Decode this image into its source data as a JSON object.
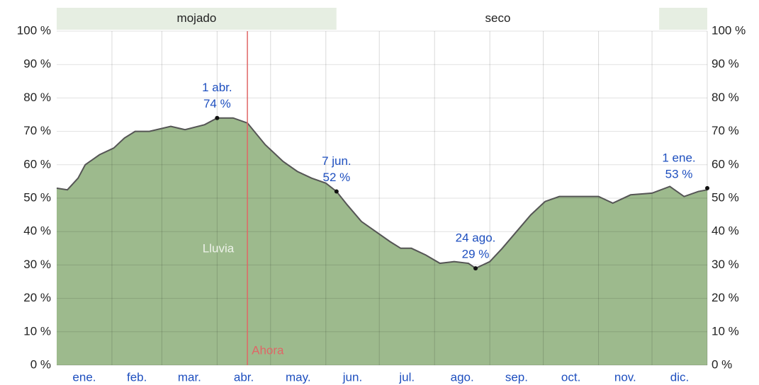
{
  "chart_data": {
    "type": "area",
    "series_label": "Lluvia",
    "x": [
      0,
      6,
      12,
      16,
      24,
      32,
      38,
      44,
      52,
      64,
      72,
      83,
      90,
      99,
      107,
      117,
      127,
      135,
      143,
      151,
      157,
      163,
      171,
      179,
      187,
      193,
      199,
      207,
      215,
      223,
      231,
      235,
      243,
      250,
      258,
      266,
      274,
      282,
      294,
      304,
      312,
      322,
      334,
      344,
      352,
      360,
      365
    ],
    "values": [
      53,
      52.5,
      56,
      60,
      63,
      65,
      68,
      70,
      70,
      71.5,
      70.5,
      72,
      74,
      74,
      72.5,
      66,
      61,
      58,
      56,
      54.5,
      52,
      48,
      43,
      40,
      37,
      35,
      35,
      33,
      30.5,
      31,
      30.5,
      29,
      31,
      35,
      40,
      45,
      49,
      50.5,
      50.5,
      50.5,
      48.5,
      51,
      51.5,
      53.5,
      50.5,
      52,
      52.5
    ],
    "color": "#9dba8d",
    "line_color": "#555555",
    "xlim": [
      0,
      365
    ],
    "xticks": [
      {
        "value": 15.5,
        "label": "ene."
      },
      {
        "value": 45,
        "label": "feb."
      },
      {
        "value": 74.5,
        "label": "mar."
      },
      {
        "value": 105,
        "label": "abr."
      },
      {
        "value": 135.5,
        "label": "may."
      },
      {
        "value": 166,
        "label": "jun."
      },
      {
        "value": 196.5,
        "label": "jul."
      },
      {
        "value": 227.5,
        "label": "ago."
      },
      {
        "value": 258,
        "label": "sep."
      },
      {
        "value": 288.5,
        "label": "oct."
      },
      {
        "value": 319,
        "label": "nov."
      },
      {
        "value": 349.5,
        "label": "dic."
      }
    ],
    "xgrid": [
      31,
      59,
      90,
      120,
      151,
      181,
      212,
      243,
      273,
      304,
      334,
      365
    ],
    "ylim": [
      0,
      100
    ],
    "yticks": [
      {
        "value": 0,
        "label": "0 %"
      },
      {
        "value": 10,
        "label": "10 %"
      },
      {
        "value": 20,
        "label": "20 %"
      },
      {
        "value": 30,
        "label": "30 %"
      },
      {
        "value": 40,
        "label": "40 %"
      },
      {
        "value": 50,
        "label": "50 %"
      },
      {
        "value": 60,
        "label": "60 %"
      },
      {
        "value": 70,
        "label": "70 %"
      },
      {
        "value": 80,
        "label": "80 %"
      },
      {
        "value": 90,
        "label": "90 %"
      },
      {
        "value": 100,
        "label": "100 %"
      }
    ],
    "grid": true,
    "seasons": [
      {
        "name": "mojado",
        "color": "#e6eee2",
        "ranges": [
          [
            0,
            157
          ],
          [
            338,
            365
          ]
        ]
      },
      {
        "name": "seco",
        "color": "#ffffff",
        "ranges": [
          [
            157,
            338
          ]
        ]
      }
    ],
    "now": {
      "x": 107,
      "label": "Ahora",
      "color": "#e06666"
    },
    "annotations": [
      {
        "x": 90,
        "value": 74,
        "date": "1 abr.",
        "label": "74 %"
      },
      {
        "x": 157,
        "value": 52,
        "date": "7 jun.",
        "label": "52 %"
      },
      {
        "x": 235,
        "value": 29,
        "date": "24 ago.",
        "label": "29 %"
      },
      {
        "x": 365,
        "value": 53,
        "date": "1 ene.",
        "label": "53 %"
      }
    ]
  }
}
